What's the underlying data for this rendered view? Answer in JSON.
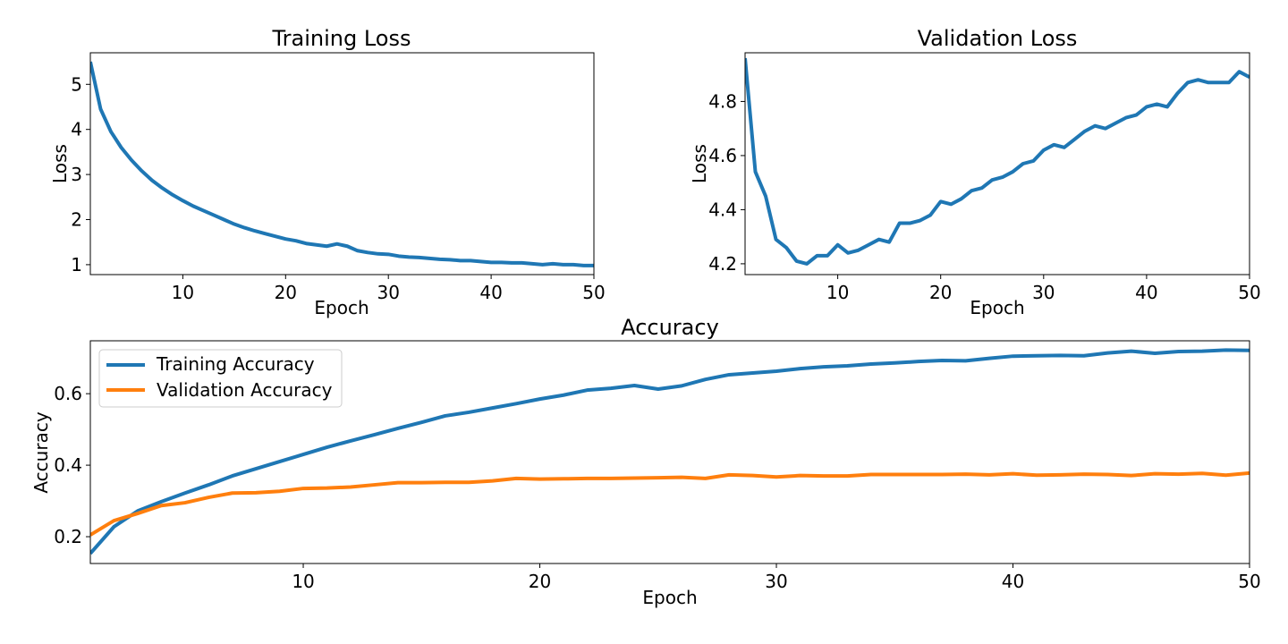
{
  "figure": {
    "background": "#ffffff"
  },
  "chart_data": [
    {
      "type": "line",
      "title": "Training Loss",
      "xlabel": "Epoch",
      "ylabel": "Loss",
      "xlim": [
        1,
        50
      ],
      "ylim": [
        0.78,
        5.7
      ],
      "xticks": [
        10,
        20,
        30,
        40,
        50
      ],
      "yticks": [
        1,
        2,
        3,
        4,
        5
      ],
      "grid": false,
      "legend": null,
      "series": [
        {
          "color": "#1f77b4",
          "x": [
            1,
            2,
            3,
            4,
            5,
            6,
            7,
            8,
            9,
            10,
            11,
            12,
            13,
            14,
            15,
            16,
            17,
            18,
            19,
            20,
            21,
            22,
            23,
            24,
            25,
            26,
            27,
            28,
            29,
            30,
            31,
            32,
            33,
            34,
            35,
            36,
            37,
            38,
            39,
            40,
            41,
            42,
            43,
            44,
            45,
            46,
            47,
            48,
            49,
            50
          ],
          "values": [
            5.5,
            4.45,
            3.95,
            3.6,
            3.32,
            3.08,
            2.87,
            2.7,
            2.55,
            2.42,
            2.3,
            2.2,
            2.1,
            2.0,
            1.9,
            1.82,
            1.75,
            1.69,
            1.63,
            1.57,
            1.53,
            1.47,
            1.44,
            1.41,
            1.46,
            1.41,
            1.31,
            1.27,
            1.24,
            1.23,
            1.19,
            1.17,
            1.16,
            1.14,
            1.12,
            1.11,
            1.09,
            1.09,
            1.07,
            1.05,
            1.05,
            1.04,
            1.04,
            1.02,
            1.0,
            1.02,
            1.0,
            1.0,
            0.98,
            0.98
          ]
        }
      ]
    },
    {
      "type": "line",
      "title": "Validation Loss",
      "xlabel": "Epoch",
      "ylabel": "Loss",
      "xlim": [
        1,
        50
      ],
      "ylim": [
        4.16,
        4.98
      ],
      "xticks": [
        10,
        20,
        30,
        40,
        50
      ],
      "yticks": [
        4.2,
        4.4,
        4.6,
        4.8
      ],
      "grid": false,
      "legend": null,
      "series": [
        {
          "color": "#1f77b4",
          "x": [
            1,
            2,
            3,
            4,
            5,
            6,
            7,
            8,
            9,
            10,
            11,
            12,
            13,
            14,
            15,
            16,
            17,
            18,
            19,
            20,
            21,
            22,
            23,
            24,
            25,
            26,
            27,
            28,
            29,
            30,
            31,
            32,
            33,
            34,
            35,
            36,
            37,
            38,
            39,
            40,
            41,
            42,
            43,
            44,
            45,
            46,
            47,
            48,
            49,
            50
          ],
          "values": [
            4.96,
            4.54,
            4.45,
            4.29,
            4.26,
            4.21,
            4.2,
            4.23,
            4.23,
            4.27,
            4.24,
            4.25,
            4.27,
            4.29,
            4.28,
            4.35,
            4.35,
            4.36,
            4.38,
            4.43,
            4.42,
            4.44,
            4.47,
            4.48,
            4.51,
            4.52,
            4.54,
            4.57,
            4.58,
            4.62,
            4.64,
            4.63,
            4.66,
            4.69,
            4.71,
            4.7,
            4.72,
            4.74,
            4.75,
            4.78,
            4.79,
            4.78,
            4.83,
            4.87,
            4.88,
            4.87,
            4.87,
            4.87,
            4.91,
            4.89
          ]
        }
      ]
    },
    {
      "type": "line",
      "title": "Accuracy",
      "xlabel": "Epoch",
      "ylabel": "Accuracy",
      "xlim": [
        1,
        50
      ],
      "ylim": [
        0.125,
        0.748
      ],
      "xticks": [
        10,
        20,
        30,
        40,
        50
      ],
      "yticks": [
        0.2,
        0.4,
        0.6
      ],
      "grid": false,
      "legend": "upper-left",
      "series": [
        {
          "name": "Training Accuracy",
          "color": "#1f77b4",
          "x": [
            1,
            2,
            3,
            4,
            5,
            6,
            7,
            8,
            9,
            10,
            11,
            12,
            13,
            14,
            15,
            16,
            17,
            18,
            19,
            20,
            21,
            22,
            23,
            24,
            25,
            26,
            27,
            28,
            29,
            30,
            31,
            32,
            33,
            34,
            35,
            36,
            37,
            38,
            39,
            40,
            41,
            42,
            43,
            44,
            45,
            46,
            47,
            48,
            49,
            50
          ],
          "values": [
            0.153,
            0.228,
            0.272,
            0.298,
            0.322,
            0.345,
            0.37,
            0.39,
            0.41,
            0.43,
            0.45,
            0.468,
            0.485,
            0.503,
            0.52,
            0.538,
            0.548,
            0.56,
            0.572,
            0.585,
            0.596,
            0.61,
            0.615,
            0.623,
            0.613,
            0.622,
            0.64,
            0.653,
            0.658,
            0.663,
            0.67,
            0.675,
            0.678,
            0.683,
            0.686,
            0.69,
            0.693,
            0.692,
            0.699,
            0.705,
            0.706,
            0.707,
            0.706,
            0.714,
            0.719,
            0.713,
            0.718,
            0.719,
            0.722,
            0.721
          ]
        },
        {
          "name": "Validation Accuracy",
          "color": "#ff7f0e",
          "x": [
            1,
            2,
            3,
            4,
            5,
            6,
            7,
            8,
            9,
            10,
            11,
            12,
            13,
            14,
            15,
            16,
            17,
            18,
            19,
            20,
            21,
            22,
            23,
            24,
            25,
            26,
            27,
            28,
            29,
            30,
            31,
            32,
            33,
            34,
            35,
            36,
            37,
            38,
            39,
            40,
            41,
            42,
            43,
            44,
            45,
            46,
            47,
            48,
            49,
            50
          ],
          "values": [
            0.205,
            0.245,
            0.265,
            0.287,
            0.295,
            0.31,
            0.322,
            0.323,
            0.327,
            0.335,
            0.336,
            0.339,
            0.345,
            0.351,
            0.351,
            0.352,
            0.352,
            0.356,
            0.363,
            0.361,
            0.362,
            0.363,
            0.363,
            0.364,
            0.365,
            0.366,
            0.363,
            0.373,
            0.371,
            0.367,
            0.371,
            0.37,
            0.37,
            0.374,
            0.374,
            0.374,
            0.374,
            0.375,
            0.373,
            0.376,
            0.372,
            0.373,
            0.375,
            0.374,
            0.371,
            0.376,
            0.375,
            0.377,
            0.372,
            0.378
          ]
        }
      ]
    }
  ]
}
